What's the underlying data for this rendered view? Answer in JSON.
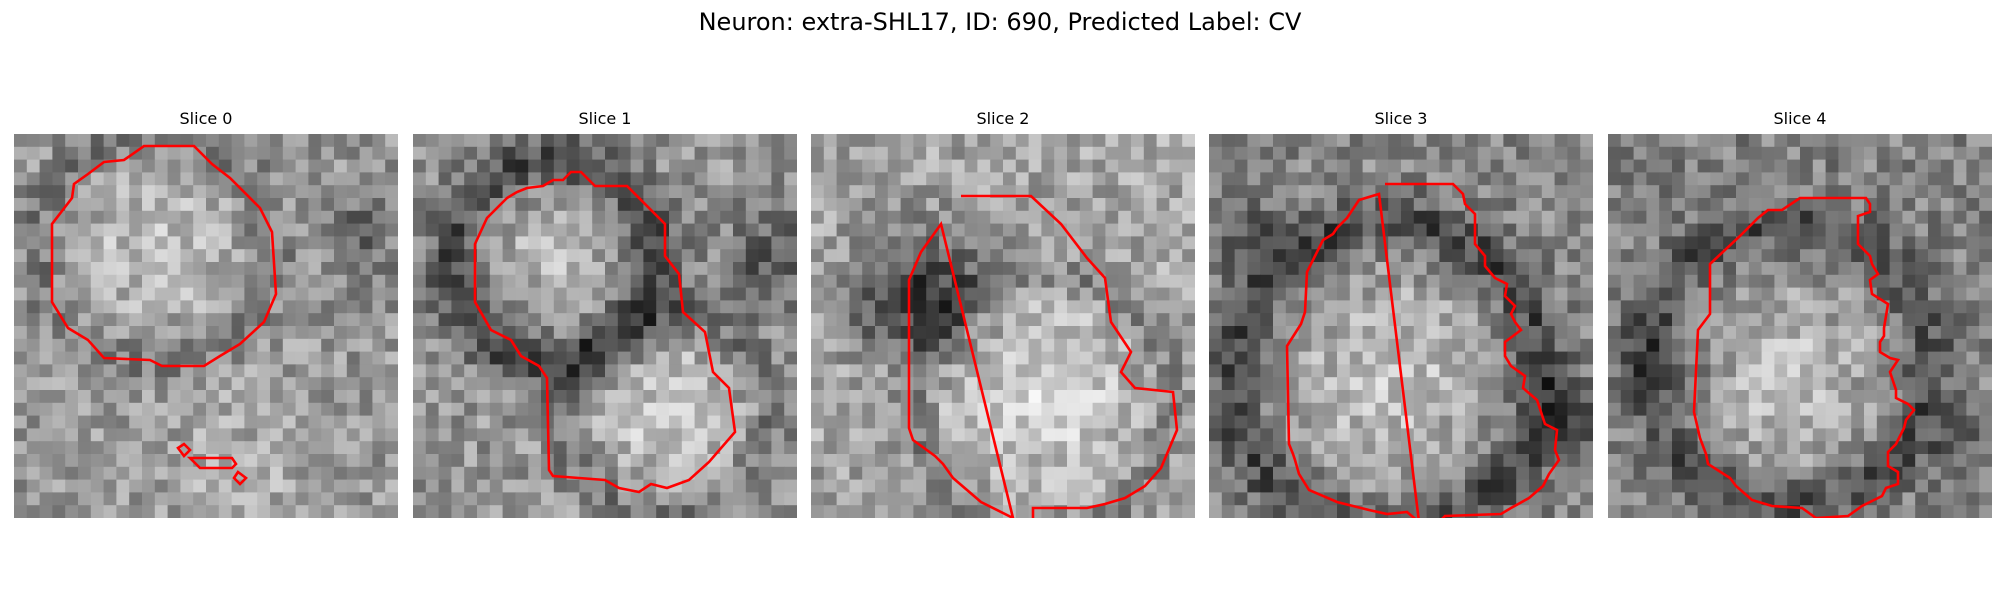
{
  "figure": {
    "title": "Neuron: extra-SHL17, ID: 690, Predicted Label: CV"
  },
  "colors": {
    "contour": "#ff0000"
  },
  "slices": [
    {
      "title": "Slice 0"
    },
    {
      "title": "Slice 1"
    },
    {
      "title": "Slice 2"
    },
    {
      "title": "Slice 3"
    },
    {
      "title": "Slice 4"
    }
  ]
}
